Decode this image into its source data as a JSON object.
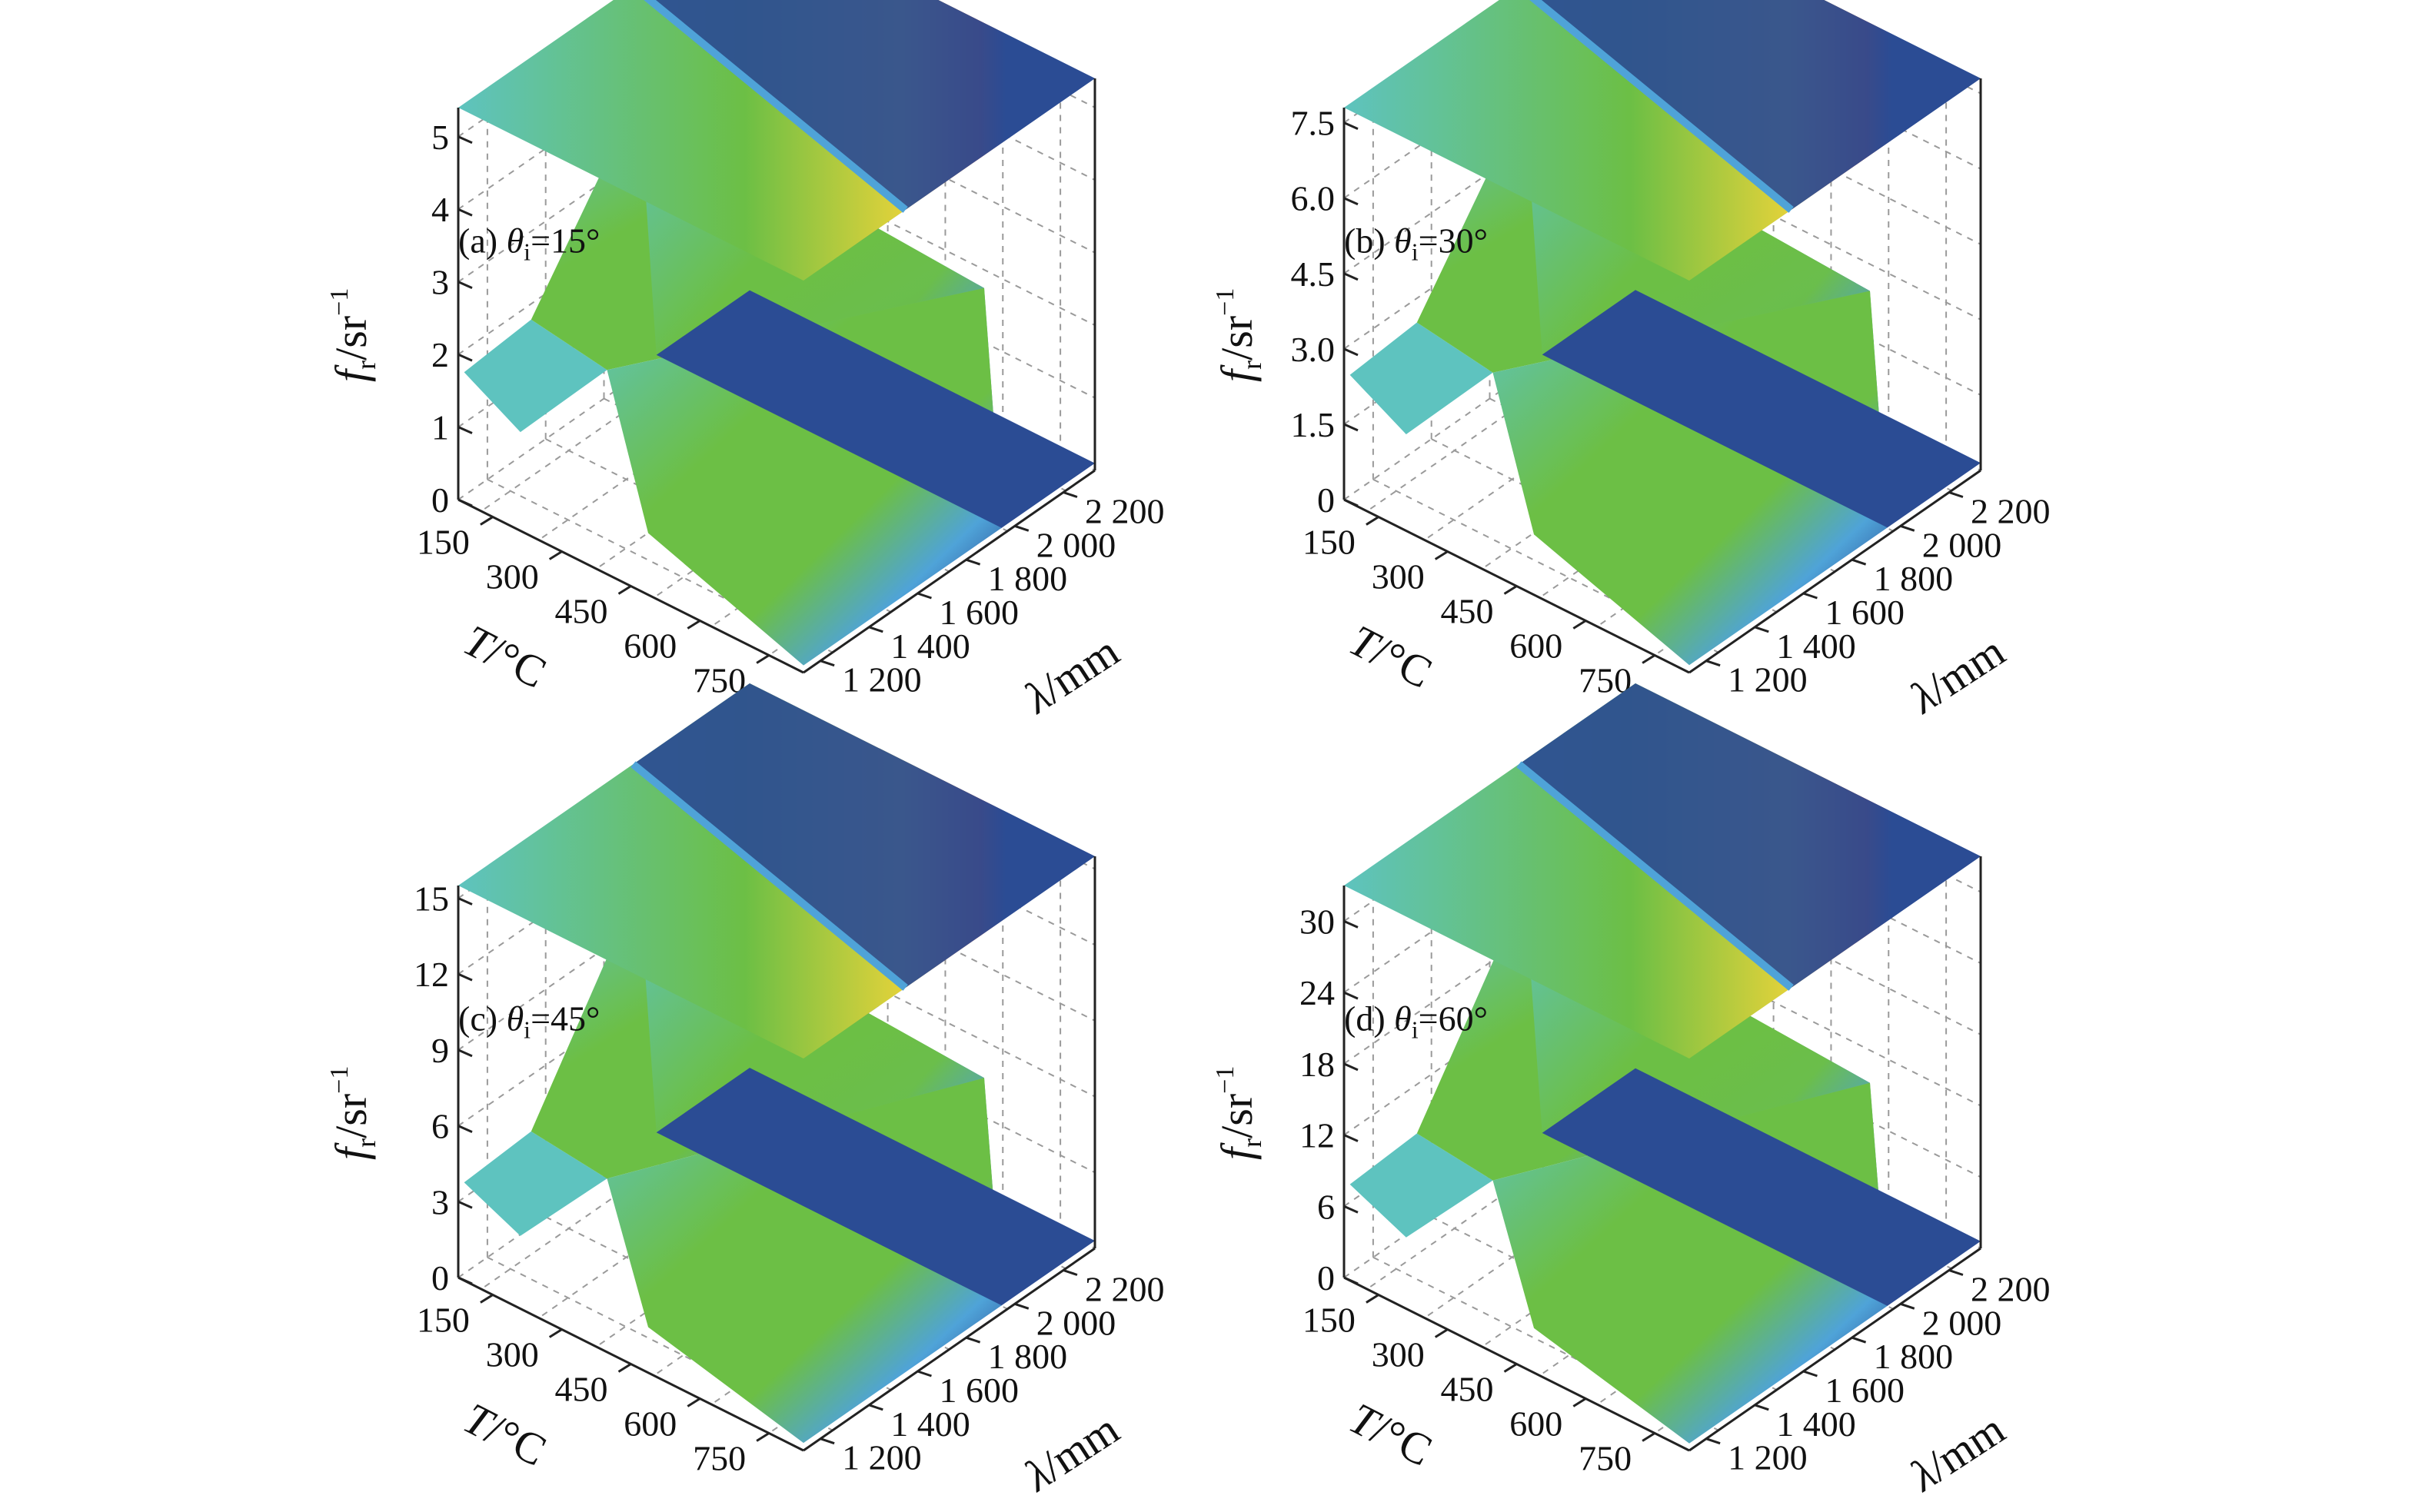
{
  "chart_data": [
    {
      "type": "surface",
      "panel_label": "(a) ",
      "theta": "θ",
      "theta_sub": "i",
      "theta_value": "=15°",
      "zlabel": {
        "main": "f",
        "sub": "r",
        "unit": "/sr",
        "sup": "−1"
      },
      "xlabel": {
        "main": "T",
        "unit": "/°C"
      },
      "ylabel": {
        "main": "λ",
        "unit": "/mm"
      },
      "z_ticks": [
        "0",
        "1",
        "2",
        "3",
        "4",
        "5"
      ],
      "x_ticks": [
        "150",
        "300",
        "450",
        "600",
        "750"
      ],
      "y_ticks": [
        "1 200",
        "1 400",
        "1 600",
        "1 800",
        "2 000",
        "2 200"
      ],
      "zlim": [
        0,
        5.4
      ],
      "surface": {
        "low_T_plateau": 1.7,
        "mid_plateau": 4.2,
        "top_peak": 5.4,
        "high_T_floor": 0.1
      }
    },
    {
      "type": "surface",
      "panel_label": "(b) ",
      "theta": "θ",
      "theta_sub": "i",
      "theta_value": "=30°",
      "zlabel": {
        "main": "f",
        "sub": "r",
        "unit": "/sr",
        "sup": "−1"
      },
      "xlabel": {
        "main": "T",
        "unit": "/°C"
      },
      "ylabel": {
        "main": "λ",
        "unit": "/mm"
      },
      "z_ticks": [
        "0",
        "1.5",
        "3.0",
        "4.5",
        "6.0",
        "7.5"
      ],
      "x_ticks": [
        "150",
        "300",
        "450",
        "600",
        "750"
      ],
      "y_ticks": [
        "1 200",
        "1 400",
        "1 600",
        "1 800",
        "2 000",
        "2 200"
      ],
      "zlim": [
        0,
        7.8
      ],
      "surface": {
        "low_T_plateau": 2.4,
        "mid_plateau": 6.0,
        "top_peak": 7.8,
        "high_T_floor": 0.15
      }
    },
    {
      "type": "surface",
      "panel_label": "(c) ",
      "theta": "θ",
      "theta_sub": "i",
      "theta_value": "=45°",
      "zlabel": {
        "main": "f",
        "sub": "r",
        "unit": "/sr",
        "sup": "−1"
      },
      "xlabel": {
        "main": "T",
        "unit": "/°C"
      },
      "ylabel": {
        "main": "λ",
        "unit": "/mm"
      },
      "z_ticks": [
        "0",
        "3",
        "6",
        "9",
        "12",
        "15"
      ],
      "x_ticks": [
        "150",
        "300",
        "450",
        "600",
        "750"
      ],
      "y_ticks": [
        "1 200",
        "1 400",
        "1 600",
        "1 800",
        "2 000",
        "2 200"
      ],
      "zlim": [
        0,
        15.5
      ],
      "surface": {
        "low_T_plateau": 3.6,
        "mid_plateau": 11.5,
        "top_peak": 15.5,
        "high_T_floor": 0.3
      }
    },
    {
      "type": "surface",
      "panel_label": "(d) ",
      "theta": "θ",
      "theta_sub": "i",
      "theta_value": "=60°",
      "zlabel": {
        "main": "f",
        "sub": "r",
        "unit": "/sr",
        "sup": "−1"
      },
      "xlabel": {
        "main": "T",
        "unit": "/°C"
      },
      "ylabel": {
        "main": "λ",
        "unit": "/mm"
      },
      "z_ticks": [
        "0",
        "6",
        "12",
        "18",
        "24",
        "30"
      ],
      "x_ticks": [
        "150",
        "300",
        "450",
        "600",
        "750"
      ],
      "y_ticks": [
        "1 200",
        "1 400",
        "1 600",
        "1 800",
        "2 000",
        "2 200"
      ],
      "zlim": [
        0,
        33
      ],
      "surface": {
        "low_T_plateau": 7.5,
        "mid_plateau": 24,
        "top_peak": 33,
        "high_T_floor": 0.6
      }
    }
  ],
  "colors": {
    "deep_blue": "#2b4c94",
    "light_blue": "#4fa3d8",
    "cyan": "#5ec3bf",
    "green": "#6cbf45",
    "yellow": "#e3d23a",
    "red": "#d63a1e"
  }
}
